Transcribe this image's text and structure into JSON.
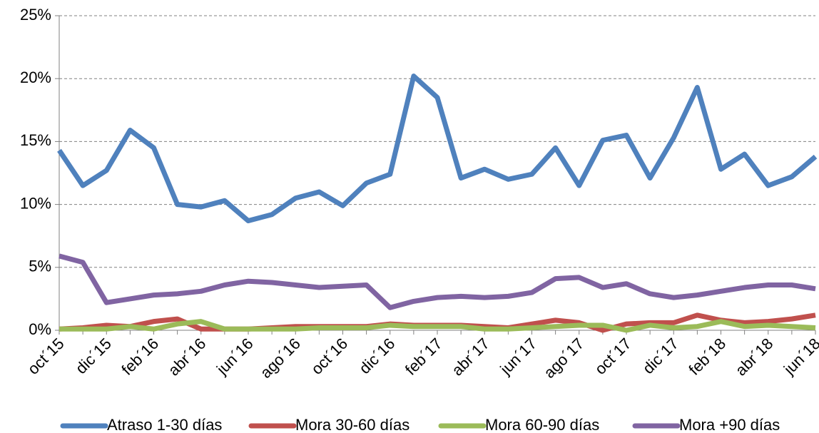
{
  "chart_data": {
    "type": "line",
    "categories": [
      "oct´15",
      null,
      "dic´15",
      null,
      "feb´16",
      null,
      "abr´16",
      null,
      "jun´16",
      null,
      "ago´16",
      null,
      "oct´16",
      null,
      "dic´16",
      null,
      "feb´17",
      null,
      "abr´17",
      null,
      "jun´17",
      null,
      "ago´17",
      null,
      "oct´17",
      null,
      "dic´17",
      null,
      "feb´18",
      null,
      "abr´18",
      null,
      "jun´18"
    ],
    "series": [
      {
        "name": "Atraso 1-30 días",
        "color": "#4f81bd",
        "values": [
          14.3,
          11.5,
          12.7,
          15.9,
          14.5,
          10.0,
          9.8,
          10.3,
          8.7,
          9.2,
          10.5,
          11.0,
          9.9,
          11.7,
          12.4,
          20.2,
          18.5,
          12.1,
          12.8,
          12.0,
          12.4,
          14.5,
          11.5,
          15.1,
          15.5,
          12.1,
          15.3,
          19.3,
          12.8,
          14.0,
          11.5,
          12.2,
          13.8
        ]
      },
      {
        "name": "Mora 30-60 días",
        "color": "#c0504d",
        "values": [
          0.1,
          0.2,
          0.4,
          0.3,
          0.7,
          0.9,
          0.1,
          0.1,
          0.1,
          0.2,
          0.3,
          0.3,
          0.3,
          0.3,
          0.5,
          0.4,
          0.4,
          0.4,
          0.3,
          0.2,
          0.5,
          0.8,
          0.6,
          0.0,
          0.5,
          0.6,
          0.6,
          1.2,
          0.8,
          0.6,
          0.7,
          0.9,
          1.2
        ]
      },
      {
        "name": "Mora 60-90 días",
        "color": "#9bbb59",
        "values": [
          0.1,
          0.1,
          0.1,
          0.3,
          0.1,
          0.5,
          0.7,
          0.1,
          0.1,
          0.1,
          0.1,
          0.2,
          0.2,
          0.2,
          0.4,
          0.3,
          0.3,
          0.3,
          0.1,
          0.1,
          0.2,
          0.3,
          0.4,
          0.4,
          0.0,
          0.4,
          0.2,
          0.3,
          0.7,
          0.3,
          0.4,
          0.3,
          0.2
        ]
      },
      {
        "name": "Mora +90 días",
        "color": "#8064a2",
        "values": [
          5.9,
          5.4,
          2.2,
          2.5,
          2.8,
          2.9,
          3.1,
          3.6,
          3.9,
          3.8,
          3.6,
          3.4,
          3.5,
          3.6,
          1.8,
          2.3,
          2.6,
          2.7,
          2.6,
          2.7,
          3.0,
          4.1,
          4.2,
          3.4,
          3.7,
          2.9,
          2.6,
          2.8,
          3.1,
          3.4,
          3.6,
          3.6,
          3.3
        ]
      }
    ],
    "ylim": [
      0,
      25
    ],
    "yticks": [
      {
        "value": 0,
        "label": "0%"
      },
      {
        "value": 5,
        "label": "5%"
      },
      {
        "value": 10,
        "label": "10%"
      },
      {
        "value": 15,
        "label": "15%"
      },
      {
        "value": 20,
        "label": "20%"
      },
      {
        "value": 25,
        "label": "25%"
      }
    ],
    "grid": true,
    "legend": "bottom"
  }
}
